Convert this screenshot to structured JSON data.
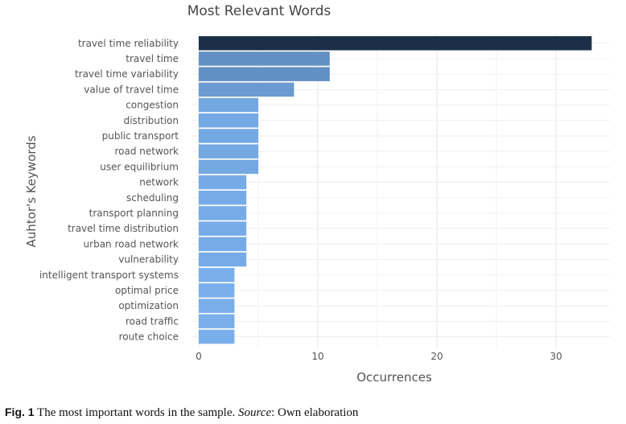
{
  "chart_data": {
    "type": "bar",
    "orientation": "horizontal",
    "title": "Most Relevant Words",
    "xlabel": "Occurrences",
    "ylabel": "Auhtor's Keywords",
    "xlim": [
      0,
      34
    ],
    "xticks": [
      0,
      10,
      20,
      30
    ],
    "grid": true,
    "categories": [
      "travel time reliability",
      "travel time",
      "travel time variability",
      "value of travel time",
      "congestion",
      "distribution",
      "public transport",
      "road network",
      "user equilibrium",
      "network",
      "scheduling",
      "transport planning",
      "travel time distribution",
      "urban road network",
      "vulnerability",
      "intelligent transport systems",
      "optimal price",
      "optimization",
      "road traffic",
      "route choice"
    ],
    "values": [
      33,
      11,
      11,
      8,
      5,
      5,
      5,
      5,
      5,
      4,
      4,
      4,
      4,
      4,
      4,
      3,
      3,
      3,
      3,
      3
    ],
    "colors": {
      "33": "#1b3048",
      "11": "#6390c4",
      "8": "#6a9ad0",
      "5": "#74a8e2",
      "4": "#77abe8",
      "3": "#7aafec"
    }
  },
  "caption": {
    "fig_label": "Fig. 1",
    "text": " The most important words in the sample. ",
    "source_label": "Source",
    "source_text": ": Own elaboration"
  }
}
